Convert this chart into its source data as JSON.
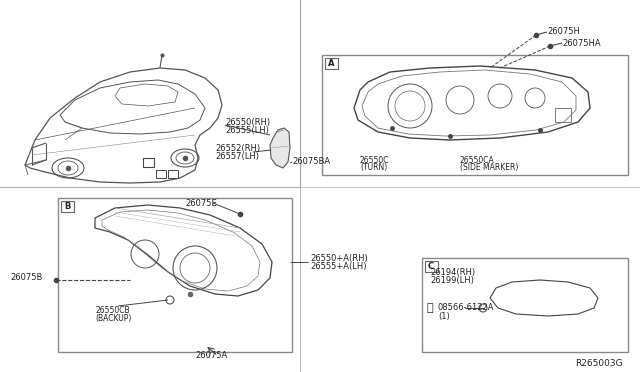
{
  "bg_color": "#ffffff",
  "ref_code": "R265003G",
  "labels": {
    "part_26550_RH": "26550(RH)",
    "part_26555_LH": "26555(LH)",
    "part_26552_RH": "26552(RH)",
    "part_26557_LH": "26557(LH)",
    "part_26550C": "26550C",
    "part_26550C_sub": "(TURN)",
    "part_26550CA": "26550CA",
    "part_26550CA_sub": "(SIDE MARKER)",
    "part_26075H": "26075H",
    "part_26075HA": "26075HA",
    "part_26075E": "26075E",
    "part_26075B": "26075B",
    "part_26550CB": "26550CB",
    "part_26550CB_sub": "(BACKUP)",
    "part_26075A": "26075A",
    "part_26550A_RH": "26550+A(RH)",
    "part_26555A_LH": "26555+A(LH)",
    "part_26194_RH": "26194(RH)",
    "part_26199_LH": "26199(LH)",
    "part_08566": "08566-6122A",
    "part_08566_sub": "(1)",
    "box_A": "A",
    "box_B": "B",
    "box_C": "C",
    "part_26075BA": "26075BA"
  },
  "line_color": "#444444",
  "box_line_color": "#666666",
  "font_size": 6.0,
  "font_color": "#222222",
  "car_line_color": "#555555"
}
